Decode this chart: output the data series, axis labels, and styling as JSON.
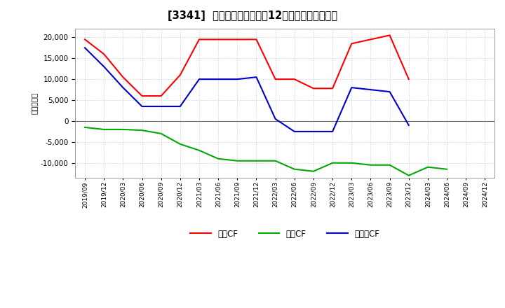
{
  "title": "[3341]  キャッシュフローの12か月移動合計の推移",
  "ylabel": "（百万円）",
  "xlabels": [
    "2019/09",
    "2019/12",
    "2020/03",
    "2020/06",
    "2020/09",
    "2020/12",
    "2021/03",
    "2021/06",
    "2021/09",
    "2021/12",
    "2022/03",
    "2022/06",
    "2022/09",
    "2022/12",
    "2023/03",
    "2023/06",
    "2023/09",
    "2023/12",
    "2024/03",
    "2024/06",
    "2024/09",
    "2024/12"
  ],
  "eigyo_cf": [
    19500,
    16000,
    10500,
    6000,
    6000,
    11000,
    19500,
    19500,
    19500,
    19500,
    10000,
    10000,
    7800,
    7800,
    18500,
    19500,
    20500,
    10000,
    null,
    null,
    null,
    null
  ],
  "toshi_cf": [
    -1500,
    -2000,
    -2000,
    -2200,
    -3000,
    -5500,
    -7000,
    -9000,
    -9500,
    -9500,
    -9500,
    -11500,
    -12000,
    -10000,
    -10000,
    -10500,
    -10500,
    -13000,
    -11000,
    -11500,
    null,
    null
  ],
  "free_cf": [
    17500,
    13000,
    8000,
    3500,
    3500,
    3500,
    10000,
    10000,
    10000,
    10500,
    500,
    -2500,
    -2500,
    -2500,
    8000,
    7500,
    7000,
    -1000,
    null,
    null,
    null,
    null
  ],
  "eigyo_color": "#ff0000",
  "toshi_color": "#00aa00",
  "free_color": "#0000cc",
  "ylim": [
    -13500,
    22000
  ],
  "yticks": [
    -10000,
    -5000,
    0,
    5000,
    10000,
    15000,
    20000
  ],
  "bg_color": "#ffffff",
  "grid_color": "#bbbbbb",
  "legend_labels": [
    "営業CF",
    "投資CF",
    "フリーCF"
  ]
}
